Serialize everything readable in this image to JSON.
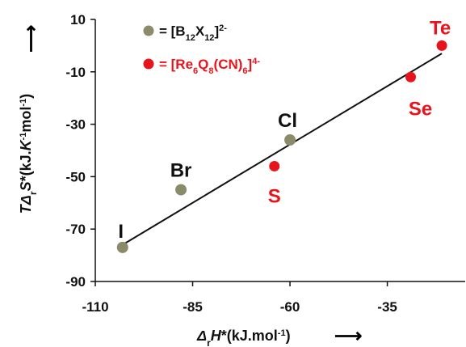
{
  "chart_data": {
    "type": "scatter",
    "xlabel": "Δ,H*(kJ.mol⁻¹)",
    "ylabel": "TΔ,S*(kJ.K⁻¹mol⁻¹)",
    "xlim": [
      -110,
      -15
    ],
    "ylim": [
      -90,
      10
    ],
    "xticks": [
      "-110",
      "-85",
      "-60",
      "-35"
    ],
    "yticks": [
      "10",
      "-10",
      "-30",
      "-50",
      "-70",
      "-90"
    ],
    "grid": false,
    "legend_position": "top-left",
    "series": [
      {
        "name": "= [B12X12]2-",
        "color": "#8b8a6a",
        "points": [
          {
            "label": "I",
            "x": -103,
            "y": -77
          },
          {
            "label": "Br",
            "x": -88,
            "y": -55
          },
          {
            "label": "Cl",
            "x": -60,
            "y": -36
          }
        ]
      },
      {
        "name": "= [Re6Q8(CN)6]4-",
        "color": "#e8141c",
        "points": [
          {
            "label": "S",
            "x": -64,
            "y": -46
          },
          {
            "label": "Se",
            "x": -29,
            "y": -12
          },
          {
            "label": "Te",
            "x": -21,
            "y": 0
          }
        ]
      }
    ],
    "fit_line": {
      "x": [
        -103,
        -21
      ],
      "y": [
        -76,
        -3
      ],
      "color": "#111111"
    }
  }
}
